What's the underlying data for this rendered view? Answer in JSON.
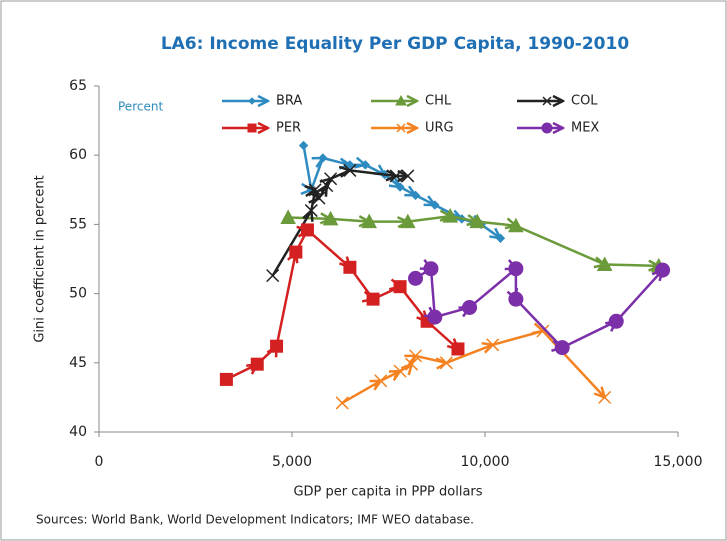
{
  "chart_data": {
    "type": "line",
    "title": "LA6: Income Equality Per GDP Capita, 1990-2010",
    "annotation": "Percent",
    "x_label": "GDP per capita in PPP dollars",
    "y_label": "Gini coefficient in percent",
    "source": "Sources: World Bank, World Development Indicators; IMF WEO database.",
    "xlim": [
      0,
      15000
    ],
    "xticks": [
      0,
      {
        "value": 5000,
        "label": "5,000"
      },
      {
        "value": 10000,
        "label": "10,000"
      },
      {
        "value": 15000,
        "label": "15,000"
      }
    ],
    "ylim": [
      40,
      65
    ],
    "yticks": [
      40,
      45,
      50,
      55,
      60,
      65
    ],
    "series": [
      {
        "name": "BRA",
        "color": "#2e8bc0",
        "marker": "diamond",
        "x": [
          5300,
          5500,
          5800,
          6500,
          6900,
          7400,
          7800,
          8200,
          8700,
          9400,
          9900,
          10400
        ],
        "values": [
          60.7,
          57.5,
          59.8,
          59.3,
          59.3,
          58.6,
          57.7,
          57.1,
          56.4,
          55.4,
          55.0,
          54.0
        ]
      },
      {
        "name": "CHL",
        "color": "#6a9a3a",
        "marker": "triangle",
        "x": [
          4900,
          6000,
          7000,
          8000,
          9100,
          9800,
          10800,
          13100,
          14500
        ],
        "values": [
          55.5,
          55.4,
          55.2,
          55.2,
          55.6,
          55.2,
          54.9,
          52.1,
          52.0
        ]
      },
      {
        "name": "COL",
        "color": "#222222",
        "marker": "x",
        "x": [
          4500,
          5500,
          5600,
          5700,
          5900,
          6000,
          6500,
          7700,
          8000
        ],
        "values": [
          51.3,
          56.0,
          57.5,
          56.9,
          57.8,
          58.3,
          58.9,
          58.5,
          58.5
        ]
      },
      {
        "name": "PER",
        "color": "#d42020",
        "marker": "square",
        "x": [
          3300,
          4100,
          4600,
          5100,
          5400,
          6500,
          7100,
          7800,
          8500,
          9300
        ],
        "values": [
          43.8,
          44.9,
          46.2,
          53.0,
          54.6,
          51.9,
          49.6,
          50.5,
          48.0,
          46.0
        ]
      },
      {
        "name": "URG",
        "color": "#f58220",
        "marker": "x",
        "x": [
          6300,
          7300,
          7800,
          8100,
          8200,
          9000,
          10200,
          11500,
          13100
        ],
        "values": [
          42.1,
          43.7,
          44.4,
          44.9,
          45.5,
          45.0,
          46.3,
          47.3,
          42.5
        ]
      },
      {
        "name": "MEX",
        "color": "#7b2fa8",
        "marker": "circle",
        "x": [
          8200,
          8600,
          8700,
          9600,
          10800,
          10800,
          12000,
          13400,
          14600
        ],
        "values": [
          51.1,
          51.8,
          48.3,
          49.0,
          51.8,
          49.6,
          46.1,
          48.0,
          51.7
        ]
      }
    ]
  }
}
